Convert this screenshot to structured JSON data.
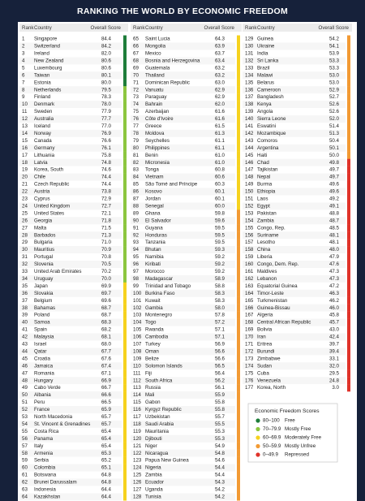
{
  "title": "RANKING THE WORLD BY ECONOMIC FREEDOM",
  "columns": [
    "Rank",
    "Country",
    "Overall Score"
  ],
  "rows": [
    [
      1,
      "Singapore",
      "84.4"
    ],
    [
      2,
      "Switzerland",
      "84.2"
    ],
    [
      3,
      "Ireland",
      "82.0"
    ],
    [
      4,
      "New Zealand",
      "80.6"
    ],
    [
      5,
      "Luxembourg",
      "80.6"
    ],
    [
      6,
      "Taiwan",
      "80.1"
    ],
    [
      7,
      "Estonia",
      "80.0"
    ],
    [
      8,
      "Netherlands",
      "79.5"
    ],
    [
      9,
      "Finland",
      "78.3"
    ],
    [
      10,
      "Denmark",
      "78.0"
    ],
    [
      11,
      "Sweden",
      "77.9"
    ],
    [
      12,
      "Australia",
      "77.7"
    ],
    [
      13,
      "Iceland",
      "77.0"
    ],
    [
      14,
      "Norway",
      "76.9"
    ],
    [
      15,
      "Canada",
      "76.6"
    ],
    [
      16,
      "Germany",
      "76.1"
    ],
    [
      17,
      "Lithuania",
      "75.8"
    ],
    [
      18,
      "Latvia",
      "74.8"
    ],
    [
      19,
      "Korea, South",
      "74.6"
    ],
    [
      20,
      "Chile",
      "74.4"
    ],
    [
      21,
      "Czech Republic",
      "74.4"
    ],
    [
      22,
      "Austria",
      "73.8"
    ],
    [
      23,
      "Cyprus",
      "72.9"
    ],
    [
      24,
      "United Kingdom",
      "72.7"
    ],
    [
      25,
      "United States",
      "72.1"
    ],
    [
      26,
      "Georgia",
      "71.8"
    ],
    [
      27,
      "Malta",
      "71.5"
    ],
    [
      28,
      "Barbados",
      "71.3"
    ],
    [
      29,
      "Bulgaria",
      "71.0"
    ],
    [
      30,
      "Mauritius",
      "70.9"
    ],
    [
      31,
      "Portugal",
      "70.8"
    ],
    [
      32,
      "Slovenia",
      "70.5"
    ],
    [
      33,
      "United Arab Emirates",
      "70.2"
    ],
    [
      34,
      "Uruguay",
      "70.0"
    ],
    [
      35,
      "Japan",
      "69.9"
    ],
    [
      36,
      "Slovakia",
      "69.7"
    ],
    [
      37,
      "Belgium",
      "69.6"
    ],
    [
      38,
      "Bahamas",
      "68.7"
    ],
    [
      39,
      "Poland",
      "68.7"
    ],
    [
      40,
      "Samoa",
      "68.3"
    ],
    [
      41,
      "Spain",
      "68.2"
    ],
    [
      42,
      "Malaysia",
      "68.1"
    ],
    [
      43,
      "Israel",
      "68.0"
    ],
    [
      44,
      "Qatar",
      "67.7"
    ],
    [
      45,
      "Croatia",
      "67.6"
    ],
    [
      46,
      "Jamaica",
      "67.4"
    ],
    [
      47,
      "Romania",
      "67.1"
    ],
    [
      48,
      "Hungary",
      "66.9"
    ],
    [
      49,
      "Cabo Verde",
      "66.7"
    ],
    [
      50,
      "Albania",
      "66.6"
    ],
    [
      51,
      "Peru",
      "66.5"
    ],
    [
      52,
      "France",
      "65.9"
    ],
    [
      53,
      "North Macedonia",
      "65.7"
    ],
    [
      54,
      "St. Vincent & Grenadines",
      "65.7"
    ],
    [
      55,
      "Costa Rica",
      "65.4"
    ],
    [
      56,
      "Panama",
      "65.4"
    ],
    [
      57,
      "Italy",
      "65.4"
    ],
    [
      58,
      "Armenia",
      "65.3"
    ],
    [
      59,
      "Serbia",
      "65.2"
    ],
    [
      60,
      "Colombia",
      "65.1"
    ],
    [
      61,
      "Botswana",
      "64.8"
    ],
    [
      62,
      "Brunei Darussalam",
      "64.8"
    ],
    [
      63,
      "Indonesia",
      "64.4"
    ],
    [
      64,
      "Kazakhstan",
      "64.4"
    ],
    [
      65,
      "Saint Lucia",
      "64.3"
    ],
    [
      66,
      "Mongolia",
      "63.9"
    ],
    [
      67,
      "Mexico",
      "63.7"
    ],
    [
      68,
      "Bosnia and Herzegovina",
      "63.4"
    ],
    [
      69,
      "Guatemala",
      "63.2"
    ],
    [
      70,
      "Thailand",
      "63.2"
    ],
    [
      71,
      "Dominican Republic",
      "63.0"
    ],
    [
      72,
      "Vanuatu",
      "62.9"
    ],
    [
      73,
      "Paraguay",
      "62.9"
    ],
    [
      74,
      "Bahrain",
      "62.0"
    ],
    [
      75,
      "Azerbaijan",
      "61.6"
    ],
    [
      76,
      "Côte d'Ivoire",
      "61.6"
    ],
    [
      77,
      "Greece",
      "61.5"
    ],
    [
      78,
      "Moldova",
      "61.3"
    ],
    [
      79,
      "Seychelles",
      "61.1"
    ],
    [
      80,
      "Philippines",
      "61.1"
    ],
    [
      81,
      "Benin",
      "61.0"
    ],
    [
      82,
      "Micronesia",
      "61.0"
    ],
    [
      83,
      "Tonga",
      "60.8"
    ],
    [
      84,
      "Vietnam",
      "60.6"
    ],
    [
      85,
      "São Tomé and Príncipe",
      "60.3"
    ],
    [
      86,
      "Kosovo",
      "60.1"
    ],
    [
      87,
      "Jordan",
      "60.1"
    ],
    [
      88,
      "Senegal",
      "60.0"
    ],
    [
      89,
      "Ghana",
      "59.8"
    ],
    [
      90,
      "El Salvador",
      "59.6"
    ],
    [
      91,
      "Guyana",
      "59.5"
    ],
    [
      92,
      "Honduras",
      "59.5"
    ],
    [
      93,
      "Tanzania",
      "59.5"
    ],
    [
      94,
      "Bhutan",
      "59.3"
    ],
    [
      95,
      "Namibia",
      "59.2"
    ],
    [
      96,
      "Kiribati",
      "59.2"
    ],
    [
      97,
      "Morocco",
      "59.2"
    ],
    [
      98,
      "Madagascar",
      "58.9"
    ],
    [
      99,
      "Trinidad and Tobago",
      "58.8"
    ],
    [
      100,
      "Burkina Faso",
      "58.3"
    ],
    [
      101,
      "Kuwait",
      "58.3"
    ],
    [
      102,
      "Gambia",
      "58.0"
    ],
    [
      103,
      "Montenegro",
      "57.8"
    ],
    [
      104,
      "Togo",
      "57.2"
    ],
    [
      105,
      "Rwanda",
      "57.1"
    ],
    [
      106,
      "Cambodia",
      "57.1"
    ],
    [
      107,
      "Turkey",
      "56.9"
    ],
    [
      108,
      "Oman",
      "56.6"
    ],
    [
      109,
      "Belize",
      "56.6"
    ],
    [
      110,
      "Solomon Islands",
      "56.5"
    ],
    [
      111,
      "Fiji",
      "56.4"
    ],
    [
      112,
      "South Africa",
      "56.2"
    ],
    [
      113,
      "Russia",
      "56.1"
    ],
    [
      114,
      "Mali",
      "55.9"
    ],
    [
      115,
      "Gabon",
      "55.8"
    ],
    [
      116,
      "Kyrgyz Republic",
      "55.8"
    ],
    [
      117,
      "Uzbekistan",
      "55.7"
    ],
    [
      118,
      "Saudi Arabia",
      "55.5"
    ],
    [
      119,
      "Mauritania",
      "55.3"
    ],
    [
      120,
      "Djibouti",
      "55.3"
    ],
    [
      121,
      "Niger",
      "54.9"
    ],
    [
      122,
      "Nicaragua",
      "54.8"
    ],
    [
      123,
      "Papua New Guinea",
      "54.6"
    ],
    [
      124,
      "Nigeria",
      "54.4"
    ],
    [
      125,
      "Zambia",
      "54.4"
    ],
    [
      126,
      "Ecuador",
      "54.3"
    ],
    [
      127,
      "Uganda",
      "54.2"
    ],
    [
      128,
      "Tunisia",
      "54.2"
    ],
    [
      129,
      "Guinea",
      "54.2"
    ],
    [
      130,
      "Ukraine",
      "54.1"
    ],
    [
      131,
      "India",
      "53.9"
    ],
    [
      132,
      "Sri Lanka",
      "53.3"
    ],
    [
      133,
      "Brazil",
      "53.3"
    ],
    [
      134,
      "Malawi",
      "53.0"
    ],
    [
      135,
      "Belarus",
      "53.0"
    ],
    [
      136,
      "Cameroon",
      "52.9"
    ],
    [
      137,
      "Bangladesh",
      "52.7"
    ],
    [
      138,
      "Kenya",
      "52.6"
    ],
    [
      139,
      "Angola",
      "52.6"
    ],
    [
      140,
      "Sierra Leone",
      "52.0"
    ],
    [
      141,
      "Eswatini",
      "51.4"
    ],
    [
      142,
      "Mozambique",
      "51.3"
    ],
    [
      143,
      "Comoros",
      "50.4"
    ],
    [
      144,
      "Argentina",
      "50.1"
    ],
    [
      145,
      "Haiti",
      "50.0"
    ],
    [
      146,
      "Chad",
      "49.8"
    ],
    [
      147,
      "Tajikistan",
      "49.7"
    ],
    [
      148,
      "Nepal",
      "49.7"
    ],
    [
      149,
      "Burma",
      "49.6"
    ],
    [
      150,
      "Ethiopia",
      "49.6"
    ],
    [
      151,
      "Laos",
      "49.2"
    ],
    [
      152,
      "Egypt",
      "49.1"
    ],
    [
      153,
      "Pakistan",
      "48.8"
    ],
    [
      154,
      "Zambia",
      "48.7"
    ],
    [
      155,
      "Congo, Rep.",
      "48.5"
    ],
    [
      156,
      "Suriname",
      "48.1"
    ],
    [
      157,
      "Lesotho",
      "48.1"
    ],
    [
      158,
      "China",
      "48.0"
    ],
    [
      159,
      "Liberia",
      "47.9"
    ],
    [
      160,
      "Congo, Dem. Rep.",
      "47.6"
    ],
    [
      161,
      "Maldives",
      "47.3"
    ],
    [
      162,
      "Lebanon",
      "47.3"
    ],
    [
      163,
      "Equatorial Guinea",
      "47.2"
    ],
    [
      164,
      "Timor-Leste",
      "46.3"
    ],
    [
      165,
      "Turkmenistan",
      "46.2"
    ],
    [
      166,
      "Guinea-Bissau",
      "46.0"
    ],
    [
      167,
      "Algeria",
      "45.8"
    ],
    [
      168,
      "Central African Republic",
      "45.7"
    ],
    [
      169,
      "Bolivia",
      "43.0"
    ],
    [
      170,
      "Iran",
      "42.4"
    ],
    [
      171,
      "Eritrea",
      "39.7"
    ],
    [
      172,
      "Burundi",
      "39.4"
    ],
    [
      173,
      "Zimbabwe",
      "33.1"
    ],
    [
      174,
      "Sudan",
      "32.0"
    ],
    [
      175,
      "Cuba",
      "29.5"
    ],
    [
      176,
      "Venezuela",
      "24.8"
    ],
    [
      177,
      "Korea, North",
      "3.0"
    ]
  ],
  "legend": {
    "title": "Economic Freedom Scores",
    "items": [
      {
        "range": "80–100",
        "label": "Free",
        "color": "#1e7d3a"
      },
      {
        "range": "70–79.9",
        "label": "Mostly Free",
        "color": "#8cc63f"
      },
      {
        "range": "60–69.9",
        "label": "Moderately Free",
        "color": "#f6d21e"
      },
      {
        "range": "50–59.9",
        "label": "Mostly Unfree",
        "color": "#f29a34"
      },
      {
        "range": "0–49.9",
        "label": "Repressed",
        "color": "#e0332a"
      }
    ]
  }
}
